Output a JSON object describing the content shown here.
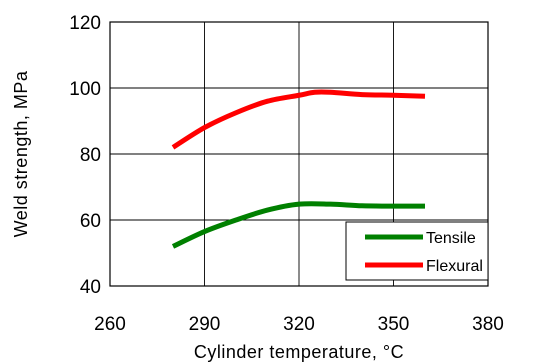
{
  "chart_data": {
    "type": "line",
    "xlabel": "Cylinder temperature, °C",
    "ylabel": "Weld strength, MPa",
    "xlim": [
      260,
      380
    ],
    "ylim": [
      40,
      120
    ],
    "xticks": [
      260,
      290,
      320,
      350,
      380
    ],
    "yticks": [
      40,
      60,
      80,
      100,
      120
    ],
    "grid": true,
    "legend_position": "bottom-right",
    "series": [
      {
        "name": "Tensile",
        "color": "#008000",
        "x": [
          280,
          290,
          300,
          310,
          320,
          330,
          340,
          350,
          360
        ],
        "y": [
          52,
          56.5,
          60,
          63,
          64.8,
          64.8,
          64.3,
          64.2,
          64.2
        ]
      },
      {
        "name": "Flexural",
        "color": "#ff0000",
        "x": [
          280,
          290,
          300,
          310,
          320,
          325,
          330,
          340,
          350,
          360
        ],
        "y": [
          82,
          88,
          92.5,
          96,
          97.8,
          98.7,
          98.7,
          98,
          97.8,
          97.5
        ]
      }
    ]
  }
}
